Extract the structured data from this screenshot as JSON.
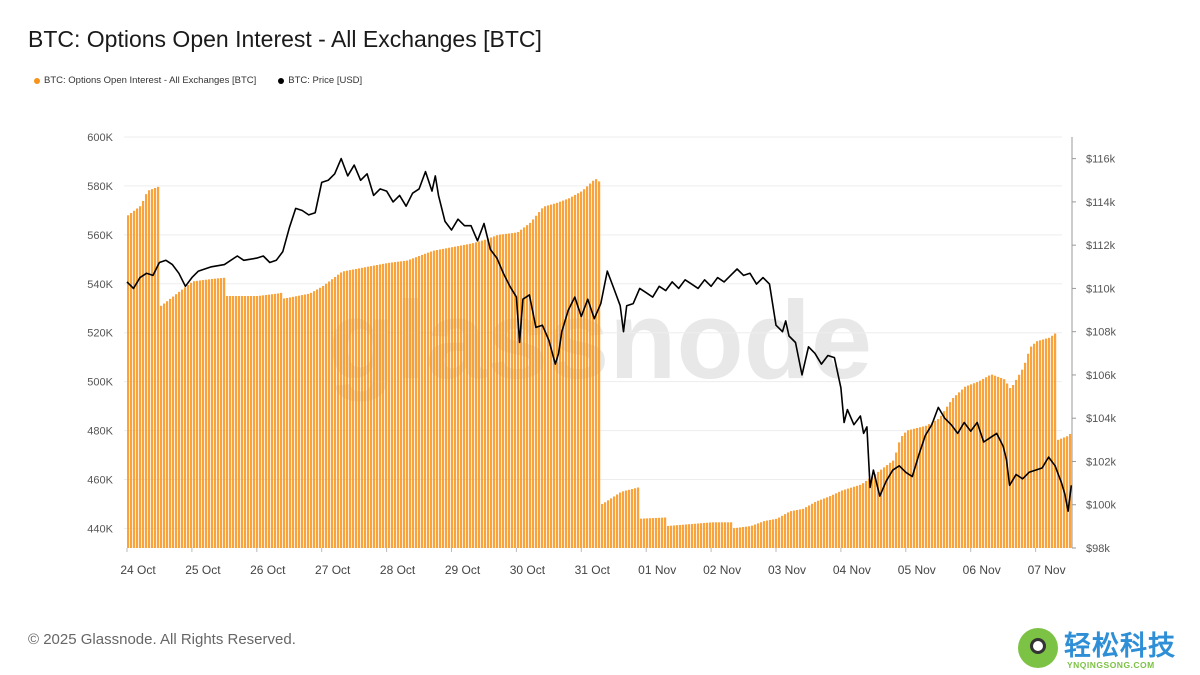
{
  "title": "BTC: Options Open Interest - All Exchanges [BTC]",
  "legend": [
    {
      "label": "BTC: Options Open Interest - All Exchanges [BTC]",
      "color": "#f7931a"
    },
    {
      "label": "BTC: Price [USD]",
      "color": "#000000"
    }
  ],
  "footer": "© 2025 Glassnode. All Rights Reserved.",
  "watermark": "glassnode",
  "brand": {
    "name": "轻松科技",
    "url": "YNQINGSONG.COM"
  },
  "chart_data": {
    "type": "bar",
    "left_axis": {
      "ticks": [
        440000,
        460000,
        480000,
        500000,
        520000,
        540000,
        560000,
        580000,
        600000
      ],
      "labels": [
        "440K",
        "460K",
        "480K",
        "500K",
        "520K",
        "540K",
        "560K",
        "580K",
        "600K"
      ],
      "range": [
        432000,
        600000
      ]
    },
    "right_axis": {
      "ticks": [
        98000,
        100000,
        102000,
        104000,
        106000,
        108000,
        110000,
        112000,
        114000,
        116000
      ],
      "labels": [
        "$98k",
        "$100k",
        "$102k",
        "$104k",
        "$106k",
        "$108k",
        "$110k",
        "$112k",
        "$114k",
        "$116k"
      ],
      "range": [
        98000,
        117000
      ]
    },
    "x_labels": [
      "24 Oct",
      "25 Oct",
      "26 Oct",
      "27 Oct",
      "28 Oct",
      "29 Oct",
      "30 Oct",
      "31 Oct",
      "01 Nov",
      "02 Nov",
      "03 Nov",
      "04 Nov",
      "05 Nov",
      "06 Nov",
      "07 Nov"
    ],
    "series": [
      {
        "name": "BTC: Options Open Interest - All Exchanges [BTC]",
        "type": "bar",
        "color": "#f7931a",
        "axis": "left",
        "points": [
          [
            0,
            568000
          ],
          [
            0.2,
            572000
          ],
          [
            0.3,
            578000
          ],
          [
            0.5,
            580000
          ],
          [
            0.51,
            531000
          ],
          [
            0.8,
            537000
          ],
          [
            1,
            541000
          ],
          [
            1.3,
            542000
          ],
          [
            1.5,
            542500
          ],
          [
            1.51,
            535000
          ],
          [
            2,
            535000
          ],
          [
            2.3,
            536000
          ],
          [
            2.4,
            536500
          ],
          [
            2.41,
            534000
          ],
          [
            2.8,
            536000
          ],
          [
            3,
            539000
          ],
          [
            3.2,
            543000
          ],
          [
            3.3,
            545000
          ],
          [
            3.5,
            546000
          ],
          [
            3.7,
            547000
          ],
          [
            4,
            548500
          ],
          [
            4.3,
            549500
          ],
          [
            4.5,
            551500
          ],
          [
            4.7,
            553500
          ],
          [
            5,
            555000
          ],
          [
            5.3,
            556500
          ],
          [
            5.5,
            558000
          ],
          [
            5.7,
            560000
          ],
          [
            6,
            561000
          ],
          [
            6.2,
            565000
          ],
          [
            6.4,
            571500
          ],
          [
            6.6,
            573000
          ],
          [
            6.8,
            575000
          ],
          [
            7,
            578000
          ],
          [
            7.2,
            583000
          ],
          [
            7.3,
            581000
          ],
          [
            7.31,
            450000
          ],
          [
            7.6,
            455000
          ],
          [
            7.9,
            457000
          ],
          [
            7.91,
            444000
          ],
          [
            8.3,
            444500
          ],
          [
            8.31,
            441000
          ],
          [
            9,
            442500
          ],
          [
            9.3,
            442500
          ],
          [
            9.31,
            440000
          ],
          [
            9.6,
            441000
          ],
          [
            9.8,
            443000
          ],
          [
            10,
            444000
          ],
          [
            10.2,
            447000
          ],
          [
            10.4,
            448000
          ],
          [
            10.6,
            451000
          ],
          [
            10.8,
            453000
          ],
          [
            11,
            455500
          ],
          [
            11.3,
            458000
          ],
          [
            11.6,
            464000
          ],
          [
            11.8,
            468000
          ],
          [
            11.9,
            477000
          ],
          [
            12,
            480000
          ],
          [
            12.3,
            482000
          ],
          [
            12.5,
            485000
          ],
          [
            12.7,
            493000
          ],
          [
            12.9,
            498000
          ],
          [
            13.1,
            500000
          ],
          [
            13.3,
            503000
          ],
          [
            13.5,
            501000
          ],
          [
            13.6,
            497000
          ],
          [
            13.8,
            506000
          ],
          [
            13.9,
            514000
          ],
          [
            14,
            516500
          ],
          [
            14.2,
            518000
          ],
          [
            14.3,
            520000
          ],
          [
            14.31,
            476000
          ],
          [
            14.5,
            478000
          ],
          [
            14.55,
            480000
          ]
        ]
      },
      {
        "name": "BTC: Price [USD]",
        "type": "line",
        "color": "#000000",
        "axis": "right",
        "points": [
          [
            0,
            110300
          ],
          [
            0.1,
            110000
          ],
          [
            0.2,
            110500
          ],
          [
            0.3,
            110700
          ],
          [
            0.4,
            110600
          ],
          [
            0.5,
            111200
          ],
          [
            0.6,
            111300
          ],
          [
            0.7,
            111100
          ],
          [
            0.8,
            110700
          ],
          [
            0.9,
            110100
          ],
          [
            1,
            110500
          ],
          [
            1.1,
            110800
          ],
          [
            1.3,
            111000
          ],
          [
            1.5,
            111100
          ],
          [
            1.7,
            111500
          ],
          [
            1.8,
            111300
          ],
          [
            2,
            111400
          ],
          [
            2.1,
            111500
          ],
          [
            2.2,
            111200
          ],
          [
            2.3,
            111300
          ],
          [
            2.4,
            111700
          ],
          [
            2.5,
            112800
          ],
          [
            2.6,
            113700
          ],
          [
            2.7,
            113600
          ],
          [
            2.8,
            113400
          ],
          [
            2.9,
            113500
          ],
          [
            3,
            114900
          ],
          [
            3.1,
            115000
          ],
          [
            3.2,
            115300
          ],
          [
            3.3,
            116000
          ],
          [
            3.4,
            115200
          ],
          [
            3.5,
            115700
          ],
          [
            3.6,
            115000
          ],
          [
            3.7,
            115300
          ],
          [
            3.8,
            114300
          ],
          [
            3.9,
            114600
          ],
          [
            4,
            114500
          ],
          [
            4.1,
            114000
          ],
          [
            4.2,
            114300
          ],
          [
            4.3,
            113800
          ],
          [
            4.4,
            114400
          ],
          [
            4.5,
            114600
          ],
          [
            4.6,
            115400
          ],
          [
            4.7,
            114500
          ],
          [
            4.75,
            115200
          ],
          [
            4.8,
            114300
          ],
          [
            4.9,
            113100
          ],
          [
            5,
            112700
          ],
          [
            5.1,
            113200
          ],
          [
            5.2,
            112900
          ],
          [
            5.3,
            112900
          ],
          [
            5.4,
            112200
          ],
          [
            5.5,
            113000
          ],
          [
            5.6,
            111800
          ],
          [
            5.7,
            111400
          ],
          [
            5.8,
            110700
          ],
          [
            5.9,
            110100
          ],
          [
            6,
            109600
          ],
          [
            6.05,
            107500
          ],
          [
            6.1,
            109500
          ],
          [
            6.2,
            109700
          ],
          [
            6.3,
            108200
          ],
          [
            6.4,
            108300
          ],
          [
            6.5,
            107600
          ],
          [
            6.6,
            106500
          ],
          [
            6.65,
            107000
          ],
          [
            6.7,
            108000
          ],
          [
            6.8,
            109000
          ],
          [
            6.9,
            109600
          ],
          [
            7,
            108700
          ],
          [
            7.1,
            109500
          ],
          [
            7.2,
            108600
          ],
          [
            7.3,
            109300
          ],
          [
            7.4,
            110800
          ],
          [
            7.5,
            110000
          ],
          [
            7.6,
            109200
          ],
          [
            7.65,
            108000
          ],
          [
            7.7,
            109200
          ],
          [
            7.8,
            109300
          ],
          [
            7.9,
            110000
          ],
          [
            8,
            109800
          ],
          [
            8.1,
            109600
          ],
          [
            8.2,
            110100
          ],
          [
            8.3,
            109900
          ],
          [
            8.4,
            110300
          ],
          [
            8.5,
            110000
          ],
          [
            8.6,
            110400
          ],
          [
            8.7,
            110200
          ],
          [
            8.8,
            110000
          ],
          [
            8.9,
            110400
          ],
          [
            9,
            110100
          ],
          [
            9.1,
            110500
          ],
          [
            9.2,
            110300
          ],
          [
            9.3,
            110600
          ],
          [
            9.4,
            110900
          ],
          [
            9.5,
            110600
          ],
          [
            9.6,
            110700
          ],
          [
            9.7,
            110200
          ],
          [
            9.8,
            110500
          ],
          [
            9.9,
            110200
          ],
          [
            10,
            108300
          ],
          [
            10.1,
            108000
          ],
          [
            10.15,
            108500
          ],
          [
            10.2,
            107800
          ],
          [
            10.3,
            107500
          ],
          [
            10.4,
            106000
          ],
          [
            10.5,
            107300
          ],
          [
            10.6,
            107000
          ],
          [
            10.7,
            106500
          ],
          [
            10.8,
            106900
          ],
          [
            10.9,
            106800
          ],
          [
            11,
            105400
          ],
          [
            11.05,
            103800
          ],
          [
            11.1,
            104400
          ],
          [
            11.2,
            103700
          ],
          [
            11.3,
            104100
          ],
          [
            11.35,
            103300
          ],
          [
            11.4,
            103600
          ],
          [
            11.45,
            100800
          ],
          [
            11.5,
            101600
          ],
          [
            11.6,
            100400
          ],
          [
            11.7,
            101100
          ],
          [
            11.8,
            101600
          ],
          [
            11.9,
            101800
          ],
          [
            12,
            101500
          ],
          [
            12.1,
            101300
          ],
          [
            12.2,
            102300
          ],
          [
            12.3,
            103200
          ],
          [
            12.4,
            103700
          ],
          [
            12.5,
            104500
          ],
          [
            12.6,
            104000
          ],
          [
            12.7,
            103700
          ],
          [
            12.8,
            103300
          ],
          [
            12.9,
            103800
          ],
          [
            13,
            103400
          ],
          [
            13.1,
            103800
          ],
          [
            13.2,
            102900
          ],
          [
            13.3,
            103100
          ],
          [
            13.4,
            103300
          ],
          [
            13.5,
            102700
          ],
          [
            13.55,
            102100
          ],
          [
            13.6,
            100900
          ],
          [
            13.7,
            101400
          ],
          [
            13.8,
            101200
          ],
          [
            13.9,
            101500
          ],
          [
            14,
            101600
          ],
          [
            14.1,
            101700
          ],
          [
            14.2,
            102200
          ],
          [
            14.3,
            101800
          ],
          [
            14.4,
            101000
          ],
          [
            14.45,
            100500
          ],
          [
            14.5,
            99700
          ],
          [
            14.55,
            100900
          ]
        ]
      }
    ]
  }
}
